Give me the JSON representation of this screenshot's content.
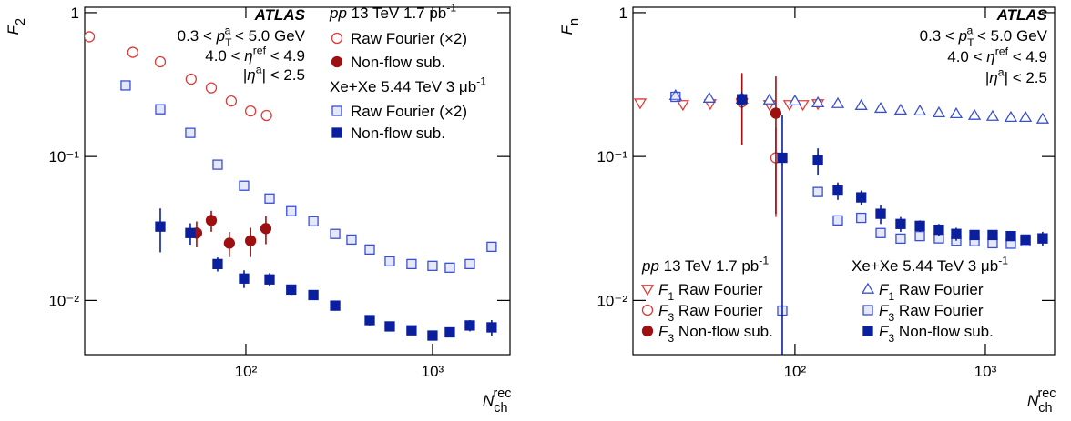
{
  "chart_data": [
    {
      "type": "scatter",
      "log_x": true,
      "log_y": true,
      "y_label": [
        {
          "text": "F",
          "style": "italic"
        },
        {
          "text": "2",
          "pos": "sub"
        }
      ],
      "x_label": [
        {
          "text": "N",
          "style": "italic"
        },
        {
          "text": "ch",
          "pos": "sub"
        },
        {
          "text": "rec",
          "pos": "sup"
        }
      ],
      "xlim": [
        13.7,
        2600
      ],
      "ylim": [
        0.0042,
        1.09
      ],
      "xticks": [
        {
          "value": 100,
          "label": "10²"
        },
        {
          "value": 1000,
          "label": "10³"
        }
      ],
      "yticks": [
        1,
        {
          "value": 0.1,
          "label": "10⁻¹"
        },
        {
          "value": 0.01,
          "label": "10⁻²"
        }
      ],
      "annotations": [
        [
          {
            "text": "ATLAS",
            "style": "bold-italic"
          }
        ],
        [
          "0.3 < ",
          {
            "text": "p",
            "style": "italic"
          },
          {
            "text": "T",
            "pos": "sub"
          },
          {
            "text": "a",
            "pos": "sup"
          },
          " < 5.0 GeV"
        ],
        [
          "4.0 < ",
          {
            "text": "η",
            "style": "italic"
          },
          {
            "text": "ref",
            "pos": "sup"
          },
          " < 4.9"
        ],
        [
          "|",
          {
            "text": "η",
            "style": "italic"
          },
          {
            "text": "a",
            "pos": "sup"
          },
          "| < 2.5"
        ]
      ],
      "groups": [
        {
          "title": [
            {
              "text": "pp",
              "style": "italic"
            },
            " 13 TeV  1.7 pb",
            {
              "text": "-1",
              "pos": "sup"
            }
          ],
          "series": [
            {
              "name": [
                "Raw Fourier (×2)"
              ],
              "color": "#e03a3a",
              "marker": "circle",
              "filled": false,
              "x": [
                14.5,
                24.8,
                34.8,
                50.9,
                65.3,
                83.5,
                106,
                129
              ],
              "values": [
                0.68,
                0.53,
                0.455,
                0.345,
                0.3,
                0.243,
                0.207,
                0.193
              ]
            },
            {
              "name": [
                "Non-flow sub."
              ],
              "color": "#9e1010",
              "marker": "circle",
              "filled": true,
              "x": [
                54.5,
                65.3,
                81.6,
                106,
                128
              ],
              "values": [
                0.0294,
                0.036,
                0.025,
                0.026,
                0.0316
              ],
              "errors": [
                0.006,
                0.006,
                0.005,
                0.006,
                0.007
              ]
            }
          ]
        },
        {
          "title": [
            "Xe+Xe 5.44 TeV 3 μb",
            {
              "text": "-1",
              "pos": "sup"
            }
          ],
          "series": [
            {
              "name": [
                "Raw Fourier (×2)"
              ],
              "color": "#3a4fd0",
              "marker": "square",
              "filled": false,
              "x": [
                22.7,
                34.8,
                50.4,
                70.6,
                97.8,
                134,
                175,
                230,
                301,
                368,
                461,
                590,
                772,
                1000,
                1238,
                1585,
                2074
              ],
              "values": [
                0.312,
                0.213,
                0.146,
                0.0878,
                0.0627,
                0.0511,
                0.0417,
                0.0355,
                0.029,
                0.0265,
                0.0226,
                0.0187,
                0.0179,
                0.0174,
                0.0169,
                0.0179,
                0.0236
              ]
            },
            {
              "name": [
                "Non-flow sub."
              ],
              "color": "#0a1f9e",
              "marker": "square",
              "filled": true,
              "x": [
                34.8,
                50.4,
                70.6,
                97.8,
                134,
                175,
                230,
                301,
                461,
                590,
                772,
                1000,
                1238,
                1585,
                2074
              ],
              "values": [
                0.0326,
                0.0294,
                0.0179,
                0.0142,
                0.014,
                0.0119,
                0.0109,
                0.0092,
                0.0073,
                0.0066,
                0.0062,
                0.0057,
                0.006,
                0.0067,
                0.0065
              ],
              "errors": [
                0.011,
                0.005,
                0.002,
                0.002,
                0.0015,
                0.001,
                0.0008,
                0.0007,
                0.0006,
                0.0005,
                0.0004,
                0.0004,
                0.0004,
                0.0006,
                0.0008
              ]
            }
          ]
        }
      ]
    },
    {
      "type": "scatter",
      "log_x": true,
      "log_y": true,
      "y_label": [
        {
          "text": "F",
          "style": "italic"
        },
        {
          "text": "n",
          "pos": "sub"
        }
      ],
      "x_label": [
        {
          "text": "N",
          "style": "italic"
        },
        {
          "text": "ch",
          "pos": "sub"
        },
        {
          "text": "rec",
          "pos": "sup"
        }
      ],
      "xlim": [
        14.1,
        2310
      ],
      "ylim": [
        0.0042,
        1.09
      ],
      "xticks": [
        {
          "value": 100,
          "label": "10²"
        },
        {
          "value": 1000,
          "label": "10³"
        }
      ],
      "yticks": [
        1,
        {
          "value": 0.1,
          "label": "10⁻¹"
        },
        {
          "value": 0.01,
          "label": "10⁻²"
        }
      ],
      "annotations": [
        [
          {
            "text": "ATLAS",
            "style": "bold-italic"
          }
        ],
        [
          "0.3 < ",
          {
            "text": "p",
            "style": "italic"
          },
          {
            "text": "T",
            "pos": "sub"
          },
          {
            "text": "a",
            "pos": "sup"
          },
          " < 5.0 GeV"
        ],
        [
          "4.0 < ",
          {
            "text": "η",
            "style": "italic"
          },
          {
            "text": "ref",
            "pos": "sup"
          },
          " < 4.9"
        ],
        [
          "|",
          {
            "text": "η",
            "style": "italic"
          },
          {
            "text": "a",
            "pos": "sup"
          },
          "| < 2.5"
        ]
      ],
      "groups": [
        {
          "title": [
            {
              "text": "pp",
              "style": "italic"
            },
            " 13 TeV 1.7 pb",
            {
              "text": "-1",
              "pos": "sup"
            }
          ],
          "series": [
            {
              "name": [
                {
                  "text": "F",
                  "style": "italic"
                },
                {
                  "text": "1",
                  "pos": "sub"
                },
                " Raw Fourier"
              ],
              "color": "#e03a3a",
              "marker": "triangle-down",
              "filled": false,
              "x": [
                15.4,
                25.8,
                35.9,
                52.7,
                73.4,
                93.6,
                110,
                132
              ],
              "values": [
                0.236,
                0.23,
                0.233,
                0.236,
                0.23,
                0.23,
                0.23,
                0.233
              ]
            },
            {
              "name": [
                {
                  "text": "F",
                  "style": "italic"
                },
                {
                  "text": "3",
                  "pos": "sub"
                },
                " Raw Fourier"
              ],
              "color": "#e03a3a",
              "marker": "circle",
              "filled": false,
              "x": [
                52.7,
                79.4
              ],
              "values": [
                0.24,
                0.098
              ],
              "errors": [
                0.01,
                0.06
              ]
            },
            {
              "name": [
                {
                  "text": "F",
                  "style": "italic"
                },
                {
                  "text": "3",
                  "pos": "sub"
                },
                " Non-flow sub."
              ],
              "color": "#9e1010",
              "marker": "circle",
              "filled": true,
              "x": [
                52.7,
                79.4
              ],
              "values": [
                0.25,
                0.2
              ],
              "errors": [
                0.13,
                0.16
              ]
            }
          ]
        },
        {
          "title": [
            "Xe+Xe 5.44 TeV 3 μb",
            {
              "text": "-1",
              "pos": "sup"
            }
          ],
          "series": [
            {
              "name": [
                {
                  "text": "F",
                  "style": "italic"
                },
                {
                  "text": "1",
                  "pos": "sub"
                },
                " Raw Fourier"
              ],
              "color": "#3a4fd0",
              "marker": "triangle-up",
              "filled": false,
              "x": [
                23.6,
                35.5,
                52.7,
                73.4,
                100,
                132,
                168,
                223,
                282,
                359,
                453,
                570,
                703,
                877,
                1092,
                1361,
                1625,
                2000
              ],
              "values": [
                0.265,
                0.254,
                0.25,
                0.247,
                0.243,
                0.236,
                0.233,
                0.226,
                0.216,
                0.21,
                0.207,
                0.201,
                0.198,
                0.193,
                0.19,
                0.187,
                0.187,
                0.182
              ]
            },
            {
              "name": [
                {
                  "text": "F",
                  "style": "italic"
                },
                {
                  "text": "3",
                  "pos": "sub"
                },
                " Raw Fourier"
              ],
              "color": "#3a4fd0",
              "marker": "square",
              "filled": false,
              "x": [
                23.6,
                85.8,
                132,
                168,
                223,
                282,
                359,
                453,
                570,
                703,
                877,
                1092,
                1361,
                1625,
                2000
              ],
              "values": [
                0.26,
                0.0085,
                0.0567,
                0.036,
                0.0375,
                0.0294,
                0.0269,
                0.028,
                0.027,
                0.026,
                0.0258,
                0.025,
                0.0248,
                0.0258,
                0.027
              ]
            },
            {
              "name": [
                {
                  "text": "F",
                  "style": "italic"
                },
                {
                  "text": "3",
                  "pos": "sub"
                },
                " Non-flow sub."
              ],
              "color": "#0a1f9e",
              "marker": "square",
              "filled": true,
              "x": [
                52.7,
                85.8,
                132,
                168,
                223,
                282,
                359,
                453,
                570,
                703,
                877,
                1092,
                1361,
                1625,
                2000
              ],
              "values": [
                0.25,
                0.098,
                0.094,
                0.058,
                0.052,
                0.04,
                0.034,
                0.033,
                0.031,
                0.029,
                0.0285,
                0.0285,
                0.028,
                0.0265,
                0.027
              ],
              "errors": [
                0.03,
                0.095,
                0.02,
                0.008,
                0.006,
                0.006,
                0.004,
                0.003,
                0.003,
                0.003,
                0.002,
                0.002,
                0.002,
                0.002,
                0.003
              ]
            }
          ]
        }
      ]
    }
  ]
}
